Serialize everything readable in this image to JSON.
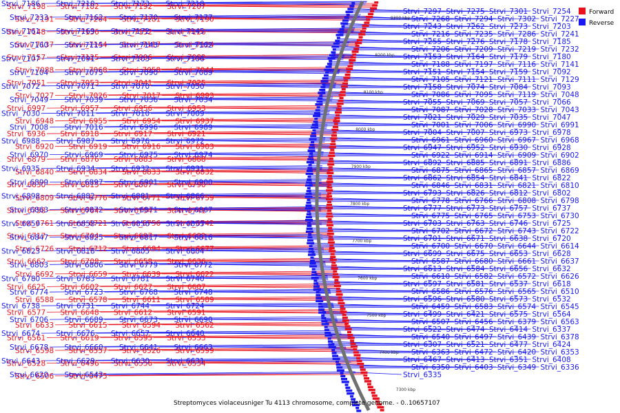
{
  "title": "Streptomyces violaceusniger Tu 4113 chromosome, complete genome. - 0..10657107",
  "legend": [
    {
      "label": "Forward",
      "color": "#e8101a"
    },
    {
      "label": "Reverse",
      "color": "#1818f0"
    }
  ],
  "colors": {
    "forward": "#e8101a",
    "reverse": "#1818f0",
    "backbone": "#707070"
  },
  "ticks": [
    "8300 kbp",
    "8200 kbp",
    "8100 kbp",
    "8000 kbp",
    "7900 kbp",
    "7800 kbp",
    "7700 kbp",
    "7600 kbp",
    "7500 kbp",
    "7400 kbp",
    "7300 kbp"
  ],
  "forward_genes": [
    "Strvi_7198",
    "Strvi_7182",
    "Strvi_7192",
    "Strvi_7207",
    "Strvi_7191",
    "Strvi_7204",
    "Strvi_7181",
    "Strvi_7190",
    "Strvi_7148",
    "Strvi_7136",
    "Strvi_7152",
    "Strvi_7126",
    "Strvi_7137",
    "Strvi_7144",
    "Strvi_7117",
    "Strvi_7124",
    "Strvi_7157",
    "Strvi_7125",
    "Strvi_7096",
    "Strvi_7082",
    "Strvi_7088",
    "Strvi_7068",
    "Strvi_7058",
    "Strvi_7044",
    "Strvi_7051",
    "Strvi_7053",
    "Strvi_7041",
    "Strvi_7025",
    "Strvi_7027",
    "Strvi_7026",
    "Strvi_7017",
    "Strvi_6993",
    "Strvi_6997",
    "Strvi_6957",
    "Strvi_6956",
    "Strvi_6953",
    "Strvi_6948",
    "Strvi_6955",
    "Strvi_6954",
    "Strvi_6937",
    "Strvi_6936",
    "Strvi_6918",
    "Strvi_6917",
    "Strvi_6921",
    "Strvi_6920",
    "Strvi_6919",
    "Strvi_6916",
    "Strvi_6903",
    "Strvi_6879",
    "Strvi_6876",
    "Strvi_6883",
    "Strvi_6868",
    "Strvi_6840",
    "Strvi_6834",
    "Strvi_6833",
    "Strvi_6832",
    "Strvi_6830",
    "Strvi_6815",
    "Strvi_6807",
    "Strvi_6790",
    "Strvi_6809",
    "Strvi_6776",
    "Strvi_6771",
    "Strvi_6759",
    "Strvi_6758",
    "Strvi_6764",
    "Strvi_6754",
    "Strvi_6741",
    "Strvi_6761",
    "Strvi_6721",
    "Strvi_6756",
    "Strvi_6742",
    "Strvi_6717",
    "Strvi_6704",
    "Strvi_6697",
    "Strvi_6682",
    "Strvi_6726",
    "Strvi_6712",
    "Strvi_6694",
    "Strvi_6677",
    "Strvi_6662",
    "Strvi_6708",
    "Strvi_6658",
    "Strvi_6636",
    "Strvi_6692",
    "Strvi_6659",
    "Strvi_6639",
    "Strvi_6622",
    "Strvi_6625",
    "Strvi_6602",
    "Strvi_6627",
    "Strvi_6607",
    "Strvi_6588",
    "Strvi_6578",
    "Strvi_6611",
    "Strvi_6589",
    "Strvi_6577",
    "Strvi_6648",
    "Strvi_6612",
    "Strvi_6591",
    "Strvi_6633",
    "Strvi_6615",
    "Strvi_6594",
    "Strvi_6562",
    "Strvi_6561",
    "Strvi_6619",
    "Strvi_6595",
    "Strvi_6553",
    "Strvi_6598",
    "Strvi_6557",
    "Strvi_6526",
    "Strvi_6599",
    "Strvi_6528",
    "Strvi_6496",
    "Strvi_6556",
    "Strvi_6534",
    "Strvi_6506",
    "Strvi_6475"
  ],
  "reverse_genes": [
    "Strvi_7186",
    "Strvi_7210",
    "Strvi_7173",
    "Strvi_7218",
    "Strvi_7233",
    "Strvi_7162",
    "Strvi_7170",
    "Strvi_7177",
    "Strvi_7161",
    "Strvi_7169",
    "Strvi_7172",
    "Strvi_7145",
    "Strvi_7160",
    "Strvi_7115",
    "Strvi_7143",
    "Strvi_7102",
    "Strvi_7107",
    "Strvi_7091",
    "Strvi_7103",
    "Strvi_7106",
    "Strvi_7104",
    "Strvi_7075",
    "Strvi_7090",
    "Strvi_7089",
    "Strvi_7072",
    "Strvi_7071",
    "Strvi_7070",
    "Strvi_7050",
    "Strvi_7049",
    "Strvi_7039",
    "Strvi_7036",
    "Strvi_7034",
    "Strvi_7030",
    "Strvi_7011",
    "Strvi_7010",
    "Strvi_7009",
    "Strvi_7008",
    "Strvi_7016",
    "Strvi_6996",
    "Strvi_6989",
    "Strvi_6988",
    "Strvi_6987",
    "Strvi_6976",
    "Strvi_6972",
    "Strvi_6970",
    "Strvi_6969",
    "Strvi_6975",
    "Strvi_6974",
    "Strvi_6935",
    "Strvi_6934",
    "Strvi_6932",
    "Strvi_6931",
    "Strvi_6899",
    "Strvi_6897",
    "Strvi_6901",
    "Strvi_6900",
    "Strvi_6898",
    "Strvi_6882",
    "Strvi_6881",
    "Strvi_6866",
    "Strvi_6863",
    "Strvi_6872",
    "Strvi_6871",
    "Strvi_6867",
    "Strvi_6859",
    "Strvi_6858",
    "Strvi_6856",
    "Strvi_6853",
    "Strvi_6847",
    "Strvi_6825",
    "Strvi_6817",
    "Strvi_6816",
    "Strvi_6823",
    "Strvi_6818",
    "Strvi_6805",
    "Strvi_6804",
    "Strvi_6803",
    "Strvi_6806",
    "Strvi_6779",
    "Strvi_6772",
    "Strvi_6780",
    "Strvi_6783",
    "Strvi_6781",
    "Strvi_6740",
    "Strvi_6774",
    "Strvi_6723",
    "Strvi_6768",
    "Strvi_6748",
    "Strvi_6738",
    "Strvi_6731",
    "Strvi_6744",
    "Strvi_6724",
    "Strvi_6706",
    "Strvi_6689",
    "Strvi_6673",
    "Strvi_6690",
    "Strvi_6674",
    "Strvi_6676",
    "Strvi_6657",
    "Strvi_6640",
    "Strvi_6678",
    "Strvi_6660",
    "Strvi_6641",
    "Strvi_6663",
    "Strvi_6643",
    "Strvi_6629",
    "Strvi_6630",
    "Strvi_6631",
    "Strvi_6620",
    "Strvi_6543",
    "Strvi_7297",
    "Strvi_7275",
    "Strvi_7301",
    "Strvi_7254",
    "Strvi_7268",
    "Strvi_7294",
    "Strvi_7302",
    "Strvi_7227",
    "Strvi_7243",
    "Strvi_7262",
    "Strvi_7273",
    "Strvi_7203",
    "Strvi_7216",
    "Strvi_7235",
    "Strvi_7286",
    "Strvi_7241",
    "Strvi_7255",
    "Strvi_7276",
    "Strvi_7178",
    "Strvi_7185",
    "Strvi_7206",
    "Strvi_7209",
    "Strvi_7219",
    "Strvi_7232",
    "Strvi_7153",
    "Strvi_7164",
    "Strvi_7179",
    "Strvi_7180",
    "Strvi_7188",
    "Strvi_7197",
    "Strvi_7116",
    "Strvi_7141",
    "Strvi_7151",
    "Strvi_7154",
    "Strvi_7159",
    "Strvi_7092",
    "Strvi_7105",
    "Strvi_7121",
    "Strvi_7111",
    "Strvi_7129",
    "Strvi_7158",
    "Strvi_7074",
    "Strvi_7084",
    "Strvi_7093",
    "Strvi_7086",
    "Strvi_7095",
    "Strvi_7119",
    "Strvi_7048",
    "Strvi_7055",
    "Strvi_7069",
    "Strvi_7057",
    "Strvi_7066",
    "Strvi_7087",
    "Strvi_7028",
    "Strvi_7033",
    "Strvi_7043",
    "Strvi_7021",
    "Strvi_7029",
    "Strvi_7035",
    "Strvi_7047",
    "Strvi_7001",
    "Strvi_7006",
    "Strvi_6990",
    "Strvi_6991",
    "Strvi_7004",
    "Strvi_7007",
    "Strvi_6973",
    "Strvi_6978",
    "Strvi_6961",
    "Strvi_6960",
    "Strvi_6967",
    "Strvi_6968",
    "Strvi_6947",
    "Strvi_6952",
    "Strvi_6930",
    "Strvi_6928",
    "Strvi_6922",
    "Strvi_6914",
    "Strvi_6909",
    "Strvi_6902",
    "Strvi_6892",
    "Strvi_6885",
    "Strvi_6891",
    "Strvi_6886",
    "Strvi_6875",
    "Strvi_6865",
    "Strvi_6857",
    "Strvi_6869",
    "Strvi_6862",
    "Strvi_6854",
    "Strvi_6841",
    "Strvi_6822",
    "Strvi_6846",
    "Strvi_6831",
    "Strvi_6821",
    "Strvi_6810",
    "Strvi_6793",
    "Strvi_6826",
    "Strvi_6812",
    "Strvi_6802",
    "Strvi_6778",
    "Strvi_6766",
    "Strvi_6808",
    "Strvi_6798",
    "Strvi_6777",
    "Strvi_6773",
    "Strvi_6757",
    "Strvi_6737",
    "Strvi_6775",
    "Strvi_6765",
    "Strvi_6753",
    "Strvi_6730",
    "Strvi_6703",
    "Strvi_6763",
    "Strvi_6746",
    "Strvi_6725",
    "Strvi_6702",
    "Strvi_6672",
    "Strvi_6743",
    "Strvi_6722",
    "Strvi_6701",
    "Strvi_6671",
    "Strvi_6638",
    "Strvi_6720",
    "Strvi_6700",
    "Strvi_6670",
    "Strvi_6644",
    "Strvi_6614",
    "Strvi_6699",
    "Strvi_6675",
    "Strvi_6653",
    "Strvi_6628",
    "Strvi_6587",
    "Strvi_6680",
    "Strvi_6661",
    "Strvi_6637",
    "Strvi_6613",
    "Strvi_6584",
    "Strvi_6656",
    "Strvi_6632",
    "Strvi_6610",
    "Strvi_6582",
    "Strvi_6572",
    "Strvi_6626",
    "Strvi_6597",
    "Strvi_6581",
    "Strvi_6537",
    "Strvi_6618",
    "Strvi_6586",
    "Strvi_6576",
    "Strvi_6565",
    "Strvi_6510",
    "Strvi_6596",
    "Strvi_6580",
    "Strvi_6573",
    "Strvi_6532",
    "Strvi_6459",
    "Strvi_6583",
    "Strvi_6574",
    "Strvi_6545",
    "Strvi_6499",
    "Strvi_6421",
    "Strvi_6575",
    "Strvi_6564",
    "Strvi_6507",
    "Strvi_6456",
    "Strvi_6379",
    "Strvi_6563",
    "Strvi_6522",
    "Strvi_6474",
    "Strvi_6414",
    "Strvi_6337",
    "Strvi_6540",
    "Strvi_6497",
    "Strvi_6439",
    "Strvi_6378",
    "Strvi_6307",
    "Strvi_6521",
    "Strvi_6477",
    "Strvi_6424",
    "Strvi_6363",
    "Strvi_6472",
    "Strvi_6420",
    "Strvi_6353",
    "Strvi_6467",
    "Strvi_6413",
    "Strvi_6351",
    "Strvi_6408",
    "Strvi_6350",
    "Strvi_6403",
    "Strvi_6349",
    "Strvi_6336",
    "Strvi_6335"
  ]
}
